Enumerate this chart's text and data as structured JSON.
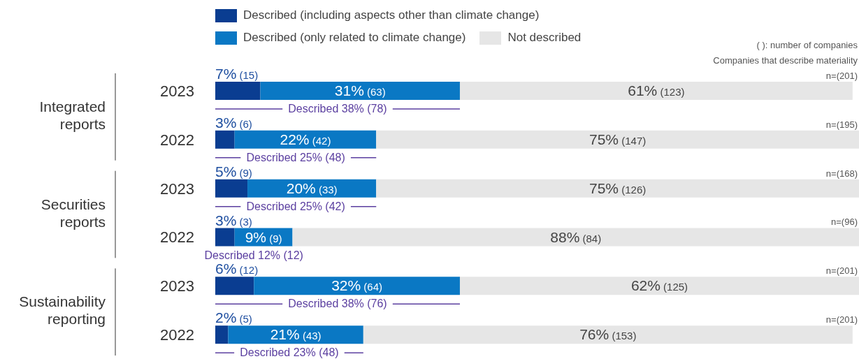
{
  "chart_data": {
    "type": "bar",
    "orientation": "horizontal",
    "stacked": true,
    "legend": "top",
    "categories": [
      "2023",
      "2022",
      "2023",
      "2022",
      "2023",
      "2022"
    ],
    "series": [
      {
        "name": "Described (including aspects other than climate change)",
        "color": "#0a3d91",
        "values": [
          7,
          3,
          5,
          3,
          6,
          2
        ],
        "value_labels": [
          "7% (15)",
          "3% (6)",
          "5% (9)",
          "3% (3)",
          "6% (12)",
          "2% (5)"
        ]
      },
      {
        "name": "Described (only related to climate change)",
        "color": "#0a78c4",
        "values": [
          31,
          22,
          20,
          9,
          32,
          21
        ],
        "value_labels": [
          "31% (63)",
          "22% (42)",
          "20% (33)",
          "9% (9)",
          "32% (64)",
          "21% (43)"
        ]
      },
      {
        "name": "Not described",
        "color": "#e6e6e6",
        "values": [
          61,
          75,
          75,
          88,
          62,
          76
        ],
        "value_labels": [
          "61% (123)",
          "75% (147)",
          "75% (126)",
          "88% (84)",
          "62% (125)",
          "76% (153)"
        ]
      }
    ],
    "annotations": [
      "( ): number of companies",
      "Companies that describe materiality",
      "Integrated reports",
      "Securities reports",
      "Sustainability reporting",
      "Described 38% (78)",
      "Described 25% (48)",
      "Described 25% (42)",
      "Described 12% (12)",
      "Described 38% (76)",
      "Described 23% (48)",
      "n=(201)",
      "n=(195)",
      "n=(168)",
      "n=(96)",
      "n=(201)",
      "n=(201)"
    ]
  }
}
